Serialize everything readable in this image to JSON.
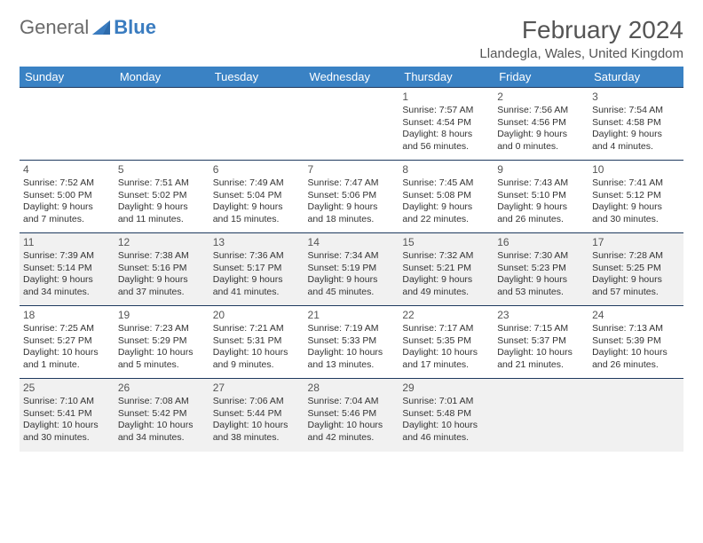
{
  "brand": {
    "word1": "General",
    "word2": "Blue",
    "logo_color": "#3a7cc0",
    "text_color": "#6a6a6a"
  },
  "header": {
    "month_title": "February 2024",
    "location": "Llandegla, Wales, United Kingdom"
  },
  "colors": {
    "header_bg": "#3a82c4",
    "header_text": "#ffffff",
    "row_alt_bg": "#f1f1f1",
    "border": "#1f3a5f"
  },
  "day_labels": [
    "Sunday",
    "Monday",
    "Tuesday",
    "Wednesday",
    "Thursday",
    "Friday",
    "Saturday"
  ],
  "weeks": [
    {
      "alt": false,
      "cells": [
        {
          "empty": true
        },
        {
          "empty": true
        },
        {
          "empty": true
        },
        {
          "empty": true
        },
        {
          "day": "1",
          "sunrise": "Sunrise: 7:57 AM",
          "sunset": "Sunset: 4:54 PM",
          "daylight1": "Daylight: 8 hours",
          "daylight2": "and 56 minutes."
        },
        {
          "day": "2",
          "sunrise": "Sunrise: 7:56 AM",
          "sunset": "Sunset: 4:56 PM",
          "daylight1": "Daylight: 9 hours",
          "daylight2": "and 0 minutes."
        },
        {
          "day": "3",
          "sunrise": "Sunrise: 7:54 AM",
          "sunset": "Sunset: 4:58 PM",
          "daylight1": "Daylight: 9 hours",
          "daylight2": "and 4 minutes."
        }
      ]
    },
    {
      "alt": false,
      "cells": [
        {
          "day": "4",
          "sunrise": "Sunrise: 7:52 AM",
          "sunset": "Sunset: 5:00 PM",
          "daylight1": "Daylight: 9 hours",
          "daylight2": "and 7 minutes."
        },
        {
          "day": "5",
          "sunrise": "Sunrise: 7:51 AM",
          "sunset": "Sunset: 5:02 PM",
          "daylight1": "Daylight: 9 hours",
          "daylight2": "and 11 minutes."
        },
        {
          "day": "6",
          "sunrise": "Sunrise: 7:49 AM",
          "sunset": "Sunset: 5:04 PM",
          "daylight1": "Daylight: 9 hours",
          "daylight2": "and 15 minutes."
        },
        {
          "day": "7",
          "sunrise": "Sunrise: 7:47 AM",
          "sunset": "Sunset: 5:06 PM",
          "daylight1": "Daylight: 9 hours",
          "daylight2": "and 18 minutes."
        },
        {
          "day": "8",
          "sunrise": "Sunrise: 7:45 AM",
          "sunset": "Sunset: 5:08 PM",
          "daylight1": "Daylight: 9 hours",
          "daylight2": "and 22 minutes."
        },
        {
          "day": "9",
          "sunrise": "Sunrise: 7:43 AM",
          "sunset": "Sunset: 5:10 PM",
          "daylight1": "Daylight: 9 hours",
          "daylight2": "and 26 minutes."
        },
        {
          "day": "10",
          "sunrise": "Sunrise: 7:41 AM",
          "sunset": "Sunset: 5:12 PM",
          "daylight1": "Daylight: 9 hours",
          "daylight2": "and 30 minutes."
        }
      ]
    },
    {
      "alt": true,
      "cells": [
        {
          "day": "11",
          "sunrise": "Sunrise: 7:39 AM",
          "sunset": "Sunset: 5:14 PM",
          "daylight1": "Daylight: 9 hours",
          "daylight2": "and 34 minutes."
        },
        {
          "day": "12",
          "sunrise": "Sunrise: 7:38 AM",
          "sunset": "Sunset: 5:16 PM",
          "daylight1": "Daylight: 9 hours",
          "daylight2": "and 37 minutes."
        },
        {
          "day": "13",
          "sunrise": "Sunrise: 7:36 AM",
          "sunset": "Sunset: 5:17 PM",
          "daylight1": "Daylight: 9 hours",
          "daylight2": "and 41 minutes."
        },
        {
          "day": "14",
          "sunrise": "Sunrise: 7:34 AM",
          "sunset": "Sunset: 5:19 PM",
          "daylight1": "Daylight: 9 hours",
          "daylight2": "and 45 minutes."
        },
        {
          "day": "15",
          "sunrise": "Sunrise: 7:32 AM",
          "sunset": "Sunset: 5:21 PM",
          "daylight1": "Daylight: 9 hours",
          "daylight2": "and 49 minutes."
        },
        {
          "day": "16",
          "sunrise": "Sunrise: 7:30 AM",
          "sunset": "Sunset: 5:23 PM",
          "daylight1": "Daylight: 9 hours",
          "daylight2": "and 53 minutes."
        },
        {
          "day": "17",
          "sunrise": "Sunrise: 7:28 AM",
          "sunset": "Sunset: 5:25 PM",
          "daylight1": "Daylight: 9 hours",
          "daylight2": "and 57 minutes."
        }
      ]
    },
    {
      "alt": false,
      "cells": [
        {
          "day": "18",
          "sunrise": "Sunrise: 7:25 AM",
          "sunset": "Sunset: 5:27 PM",
          "daylight1": "Daylight: 10 hours",
          "daylight2": "and 1 minute."
        },
        {
          "day": "19",
          "sunrise": "Sunrise: 7:23 AM",
          "sunset": "Sunset: 5:29 PM",
          "daylight1": "Daylight: 10 hours",
          "daylight2": "and 5 minutes."
        },
        {
          "day": "20",
          "sunrise": "Sunrise: 7:21 AM",
          "sunset": "Sunset: 5:31 PM",
          "daylight1": "Daylight: 10 hours",
          "daylight2": "and 9 minutes."
        },
        {
          "day": "21",
          "sunrise": "Sunrise: 7:19 AM",
          "sunset": "Sunset: 5:33 PM",
          "daylight1": "Daylight: 10 hours",
          "daylight2": "and 13 minutes."
        },
        {
          "day": "22",
          "sunrise": "Sunrise: 7:17 AM",
          "sunset": "Sunset: 5:35 PM",
          "daylight1": "Daylight: 10 hours",
          "daylight2": "and 17 minutes."
        },
        {
          "day": "23",
          "sunrise": "Sunrise: 7:15 AM",
          "sunset": "Sunset: 5:37 PM",
          "daylight1": "Daylight: 10 hours",
          "daylight2": "and 21 minutes."
        },
        {
          "day": "24",
          "sunrise": "Sunrise: 7:13 AM",
          "sunset": "Sunset: 5:39 PM",
          "daylight1": "Daylight: 10 hours",
          "daylight2": "and 26 minutes."
        }
      ]
    },
    {
      "alt": true,
      "cells": [
        {
          "day": "25",
          "sunrise": "Sunrise: 7:10 AM",
          "sunset": "Sunset: 5:41 PM",
          "daylight1": "Daylight: 10 hours",
          "daylight2": "and 30 minutes."
        },
        {
          "day": "26",
          "sunrise": "Sunrise: 7:08 AM",
          "sunset": "Sunset: 5:42 PM",
          "daylight1": "Daylight: 10 hours",
          "daylight2": "and 34 minutes."
        },
        {
          "day": "27",
          "sunrise": "Sunrise: 7:06 AM",
          "sunset": "Sunset: 5:44 PM",
          "daylight1": "Daylight: 10 hours",
          "daylight2": "and 38 minutes."
        },
        {
          "day": "28",
          "sunrise": "Sunrise: 7:04 AM",
          "sunset": "Sunset: 5:46 PM",
          "daylight1": "Daylight: 10 hours",
          "daylight2": "and 42 minutes."
        },
        {
          "day": "29",
          "sunrise": "Sunrise: 7:01 AM",
          "sunset": "Sunset: 5:48 PM",
          "daylight1": "Daylight: 10 hours",
          "daylight2": "and 46 minutes."
        },
        {
          "empty": true
        },
        {
          "empty": true
        }
      ]
    }
  ]
}
